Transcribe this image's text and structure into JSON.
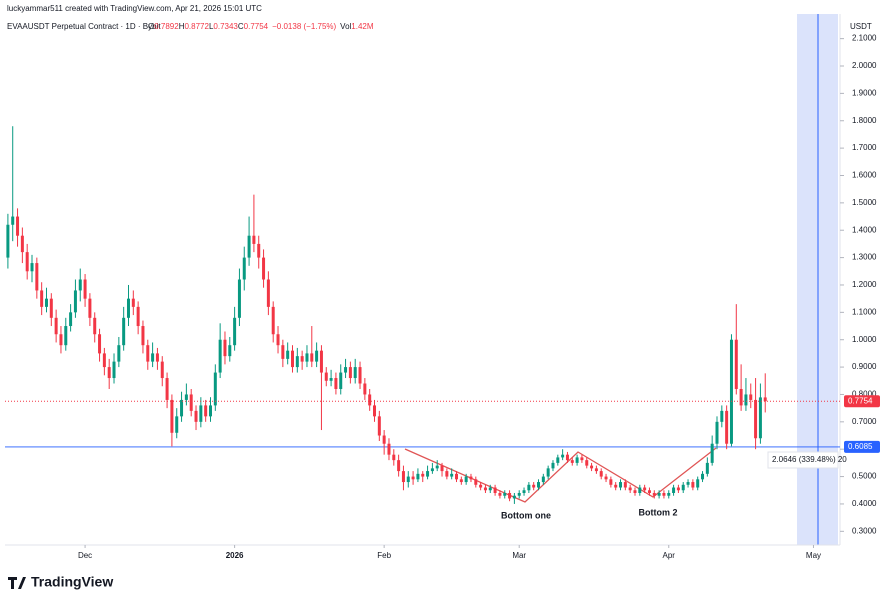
{
  "header": {
    "author_line": "luckyammar511 created with TradingView.com, Apr 21, 2026 15:01 UTC"
  },
  "chart_data": {
    "type": "candlestick",
    "title": "EVAAUSDT Perpetual Contract · 1D · Bybit",
    "ohlc_keys": [
      "O",
      "H",
      "L",
      "C"
    ],
    "change": "−0.0138 (−1.75%)",
    "volume_key": "Vol",
    "volume": "1.42M",
    "y_axis_label": "USDT",
    "up_color": "#089981",
    "down_color": "#f23645",
    "grid": false,
    "xlim": [
      -0.6,
      172.5
    ],
    "xticks": [
      {
        "value": 16,
        "label": "Dec"
      },
      {
        "value": 47,
        "label": "2026"
      },
      {
        "value": 78,
        "label": "Feb"
      },
      {
        "value": 106,
        "label": "Mar"
      },
      {
        "value": 137,
        "label": "Apr"
      },
      {
        "value": 167,
        "label": "May"
      }
    ],
    "ylim": [
      0.25,
      2.19
    ],
    "yticks": [
      {
        "value": 0.3,
        "label": "0.3000"
      },
      {
        "value": 0.4,
        "label": "0.4000"
      },
      {
        "value": 0.5,
        "label": "0.5000"
      },
      {
        "value": 0.6,
        "label": "0.6000"
      },
      {
        "value": 0.7,
        "label": "0.7000"
      },
      {
        "value": 0.8,
        "label": "0.8000"
      },
      {
        "value": 0.9,
        "label": "0.9000"
      },
      {
        "value": 1.0,
        "label": "1.0000"
      },
      {
        "value": 1.1,
        "label": "1.1000"
      },
      {
        "value": 1.2,
        "label": "1.2000"
      },
      {
        "value": 1.3,
        "label": "1.3000"
      },
      {
        "value": 1.4,
        "label": "1.4000"
      },
      {
        "value": 1.5,
        "label": "1.5000"
      },
      {
        "value": 1.6,
        "label": "1.6000"
      },
      {
        "value": 1.7,
        "label": "1.7000"
      },
      {
        "value": 1.8,
        "label": "1.8000"
      },
      {
        "value": 1.9,
        "label": "1.9000"
      },
      {
        "value": 2.0,
        "label": "2.0000"
      },
      {
        "value": 2.1,
        "label": "2.1000"
      }
    ],
    "hlines": [
      {
        "value": 0.6085,
        "color": "#2962ff"
      }
    ],
    "last_price_color": "#f23645",
    "annotations": [
      "Bottom one",
      "Bottom 2",
      "2.0646 (339.48%) 20"
    ],
    "candles": [
      [
        1.3,
        1.46,
        1.26,
        1.42
      ],
      [
        1.42,
        1.78,
        1.36,
        1.45
      ],
      [
        1.45,
        1.48,
        1.34,
        1.38
      ],
      [
        1.38,
        1.41,
        1.28,
        1.32
      ],
      [
        1.32,
        1.35,
        1.22,
        1.25
      ],
      [
        1.25,
        1.31,
        1.21,
        1.28
      ],
      [
        1.28,
        1.3,
        1.15,
        1.18
      ],
      [
        1.18,
        1.21,
        1.09,
        1.12
      ],
      [
        1.12,
        1.19,
        1.1,
        1.15
      ],
      [
        1.15,
        1.17,
        1.05,
        1.08
      ],
      [
        1.08,
        1.11,
        0.99,
        1.02
      ],
      [
        1.02,
        1.05,
        0.95,
        0.98
      ],
      [
        0.98,
        1.08,
        0.96,
        1.05
      ],
      [
        1.05,
        1.13,
        1.03,
        1.1
      ],
      [
        1.1,
        1.22,
        1.08,
        1.18
      ],
      [
        1.18,
        1.26,
        1.14,
        1.22
      ],
      [
        1.22,
        1.24,
        1.12,
        1.15
      ],
      [
        1.15,
        1.17,
        1.05,
        1.08
      ],
      [
        1.08,
        1.1,
        0.99,
        1.02
      ],
      [
        1.02,
        1.04,
        0.92,
        0.95
      ],
      [
        0.95,
        0.97,
        0.87,
        0.9
      ],
      [
        0.9,
        0.93,
        0.82,
        0.86
      ],
      [
        0.86,
        0.95,
        0.84,
        0.92
      ],
      [
        0.92,
        1.01,
        0.9,
        0.98
      ],
      [
        0.98,
        1.12,
        0.96,
        1.08
      ],
      [
        1.08,
        1.2,
        1.05,
        1.15
      ],
      [
        1.15,
        1.18,
        1.09,
        1.12
      ],
      [
        1.12,
        1.14,
        1.02,
        1.05
      ],
      [
        1.05,
        1.07,
        0.95,
        0.98
      ],
      [
        0.98,
        1.0,
        0.89,
        0.92
      ],
      [
        0.92,
        0.99,
        0.9,
        0.95
      ],
      [
        0.95,
        0.97,
        0.89,
        0.92
      ],
      [
        0.92,
        0.94,
        0.83,
        0.86
      ],
      [
        0.86,
        0.88,
        0.75,
        0.78
      ],
      [
        0.78,
        0.8,
        0.61,
        0.66
      ],
      [
        0.66,
        0.75,
        0.64,
        0.72
      ],
      [
        0.72,
        0.81,
        0.7,
        0.78
      ],
      [
        0.78,
        0.84,
        0.76,
        0.8
      ],
      [
        0.8,
        0.82,
        0.72,
        0.74
      ],
      [
        0.74,
        0.76,
        0.67,
        0.7
      ],
      [
        0.7,
        0.79,
        0.68,
        0.76
      ],
      [
        0.76,
        0.78,
        0.7,
        0.72
      ],
      [
        0.72,
        0.79,
        0.7,
        0.76
      ],
      [
        0.76,
        0.91,
        0.74,
        0.88
      ],
      [
        0.88,
        1.06,
        0.86,
        1.0
      ],
      [
        1.0,
        1.03,
        0.91,
        0.94
      ],
      [
        0.94,
        1.01,
        0.92,
        0.98
      ],
      [
        0.98,
        1.12,
        0.96,
        1.08
      ],
      [
        1.08,
        1.26,
        1.05,
        1.22
      ],
      [
        1.22,
        1.34,
        1.18,
        1.3
      ],
      [
        1.3,
        1.45,
        1.27,
        1.38
      ],
      [
        1.38,
        1.53,
        1.32,
        1.35
      ],
      [
        1.35,
        1.38,
        1.26,
        1.3
      ],
      [
        1.3,
        1.33,
        1.19,
        1.22
      ],
      [
        1.22,
        1.25,
        1.09,
        1.12
      ],
      [
        1.12,
        1.14,
        0.99,
        1.02
      ],
      [
        1.02,
        1.05,
        0.95,
        0.98
      ],
      [
        0.98,
        1.0,
        0.9,
        0.93
      ],
      [
        0.93,
        0.99,
        0.91,
        0.96
      ],
      [
        0.96,
        0.98,
        0.88,
        0.9
      ],
      [
        0.9,
        0.97,
        0.88,
        0.94
      ],
      [
        0.94,
        0.96,
        0.89,
        0.92
      ],
      [
        0.92,
        0.98,
        0.9,
        0.95
      ],
      [
        0.95,
        1.05,
        0.9,
        0.92
      ],
      [
        0.92,
        0.99,
        0.9,
        0.96
      ],
      [
        0.96,
        0.98,
        0.67,
        0.88
      ],
      [
        0.88,
        0.9,
        0.83,
        0.85
      ],
      [
        0.85,
        0.89,
        0.83,
        0.86
      ],
      [
        0.86,
        0.88,
        0.8,
        0.82
      ],
      [
        0.82,
        0.91,
        0.8,
        0.88
      ],
      [
        0.88,
        0.93,
        0.86,
        0.9
      ],
      [
        0.9,
        0.92,
        0.84,
        0.86
      ],
      [
        0.86,
        0.93,
        0.84,
        0.9
      ],
      [
        0.9,
        0.92,
        0.82,
        0.84
      ],
      [
        0.84,
        0.86,
        0.78,
        0.8
      ],
      [
        0.8,
        0.82,
        0.74,
        0.76
      ],
      [
        0.76,
        0.78,
        0.7,
        0.72
      ],
      [
        0.72,
        0.74,
        0.63,
        0.65
      ],
      [
        0.65,
        0.67,
        0.58,
        0.62
      ],
      [
        0.62,
        0.64,
        0.56,
        0.58
      ],
      [
        0.58,
        0.6,
        0.54,
        0.56
      ],
      [
        0.56,
        0.58,
        0.5,
        0.52
      ],
      [
        0.52,
        0.54,
        0.45,
        0.48
      ],
      [
        0.48,
        0.52,
        0.46,
        0.5
      ],
      [
        0.5,
        0.52,
        0.47,
        0.49
      ],
      [
        0.49,
        0.53,
        0.48,
        0.51
      ],
      [
        0.51,
        0.52,
        0.48,
        0.5
      ],
      [
        0.5,
        0.54,
        0.49,
        0.52
      ],
      [
        0.52,
        0.55,
        0.51,
        0.53
      ],
      [
        0.53,
        0.56,
        0.52,
        0.54
      ],
      [
        0.54,
        0.55,
        0.5,
        0.52
      ],
      [
        0.52,
        0.53,
        0.49,
        0.5
      ],
      [
        0.5,
        0.53,
        0.49,
        0.51
      ],
      [
        0.51,
        0.52,
        0.48,
        0.49
      ],
      [
        0.49,
        0.5,
        0.47,
        0.48
      ],
      [
        0.48,
        0.51,
        0.47,
        0.5
      ],
      [
        0.5,
        0.51,
        0.48,
        0.49
      ],
      [
        0.49,
        0.5,
        0.46,
        0.47
      ],
      [
        0.47,
        0.48,
        0.45,
        0.46
      ],
      [
        0.46,
        0.47,
        0.44,
        0.45
      ],
      [
        0.45,
        0.47,
        0.44,
        0.46
      ],
      [
        0.46,
        0.47,
        0.43,
        0.44
      ],
      [
        0.44,
        0.45,
        0.42,
        0.43
      ],
      [
        0.43,
        0.45,
        0.42,
        0.44
      ],
      [
        0.44,
        0.45,
        0.41,
        0.42
      ],
      [
        0.42,
        0.44,
        0.4,
        0.43
      ],
      [
        0.43,
        0.45,
        0.42,
        0.44
      ],
      [
        0.44,
        0.46,
        0.43,
        0.45
      ],
      [
        0.45,
        0.48,
        0.44,
        0.47
      ],
      [
        0.47,
        0.48,
        0.45,
        0.46
      ],
      [
        0.46,
        0.49,
        0.45,
        0.48
      ],
      [
        0.48,
        0.51,
        0.47,
        0.5
      ],
      [
        0.5,
        0.54,
        0.49,
        0.53
      ],
      [
        0.53,
        0.56,
        0.52,
        0.55
      ],
      [
        0.55,
        0.58,
        0.54,
        0.57
      ],
      [
        0.57,
        0.6,
        0.56,
        0.58
      ],
      [
        0.58,
        0.59,
        0.55,
        0.56
      ],
      [
        0.56,
        0.57,
        0.54,
        0.55
      ],
      [
        0.55,
        0.58,
        0.54,
        0.57
      ],
      [
        0.57,
        0.58,
        0.55,
        0.56
      ],
      [
        0.56,
        0.57,
        0.53,
        0.54
      ],
      [
        0.54,
        0.55,
        0.52,
        0.53
      ],
      [
        0.53,
        0.54,
        0.51,
        0.52
      ],
      [
        0.52,
        0.53,
        0.49,
        0.5
      ],
      [
        0.5,
        0.51,
        0.48,
        0.49
      ],
      [
        0.49,
        0.5,
        0.46,
        0.47
      ],
      [
        0.47,
        0.48,
        0.45,
        0.46
      ],
      [
        0.46,
        0.49,
        0.45,
        0.48
      ],
      [
        0.48,
        0.49,
        0.45,
        0.46
      ],
      [
        0.46,
        0.47,
        0.44,
        0.45
      ],
      [
        0.45,
        0.46,
        0.43,
        0.44
      ],
      [
        0.44,
        0.47,
        0.43,
        0.46
      ],
      [
        0.46,
        0.47,
        0.44,
        0.45
      ],
      [
        0.45,
        0.46,
        0.43,
        0.44
      ],
      [
        0.44,
        0.45,
        0.42,
        0.43
      ],
      [
        0.43,
        0.45,
        0.42,
        0.44
      ],
      [
        0.44,
        0.45,
        0.42,
        0.43
      ],
      [
        0.43,
        0.45,
        0.42,
        0.44
      ],
      [
        0.44,
        0.47,
        0.43,
        0.46
      ],
      [
        0.46,
        0.47,
        0.44,
        0.45
      ],
      [
        0.45,
        0.48,
        0.44,
        0.47
      ],
      [
        0.47,
        0.49,
        0.46,
        0.48
      ],
      [
        0.48,
        0.49,
        0.45,
        0.46
      ],
      [
        0.46,
        0.5,
        0.45,
        0.49
      ],
      [
        0.49,
        0.52,
        0.48,
        0.51
      ],
      [
        0.51,
        0.57,
        0.5,
        0.55
      ],
      [
        0.55,
        0.65,
        0.54,
        0.62
      ],
      [
        0.62,
        0.72,
        0.6,
        0.7
      ],
      [
        0.7,
        0.76,
        0.68,
        0.74
      ],
      [
        0.74,
        0.76,
        0.6,
        0.62
      ],
      [
        0.62,
        1.02,
        0.61,
        1.0
      ],
      [
        1.0,
        1.13,
        0.8,
        0.82
      ],
      [
        0.82,
        0.91,
        0.74,
        0.76
      ],
      [
        0.76,
        0.86,
        0.74,
        0.8
      ],
      [
        0.8,
        0.84,
        0.75,
        0.78
      ],
      [
        0.78,
        0.86,
        0.6,
        0.64
      ],
      [
        0.64,
        0.84,
        0.62,
        0.7892
      ],
      [
        0.7892,
        0.8772,
        0.7343,
        0.7754
      ]
    ]
  }
}
